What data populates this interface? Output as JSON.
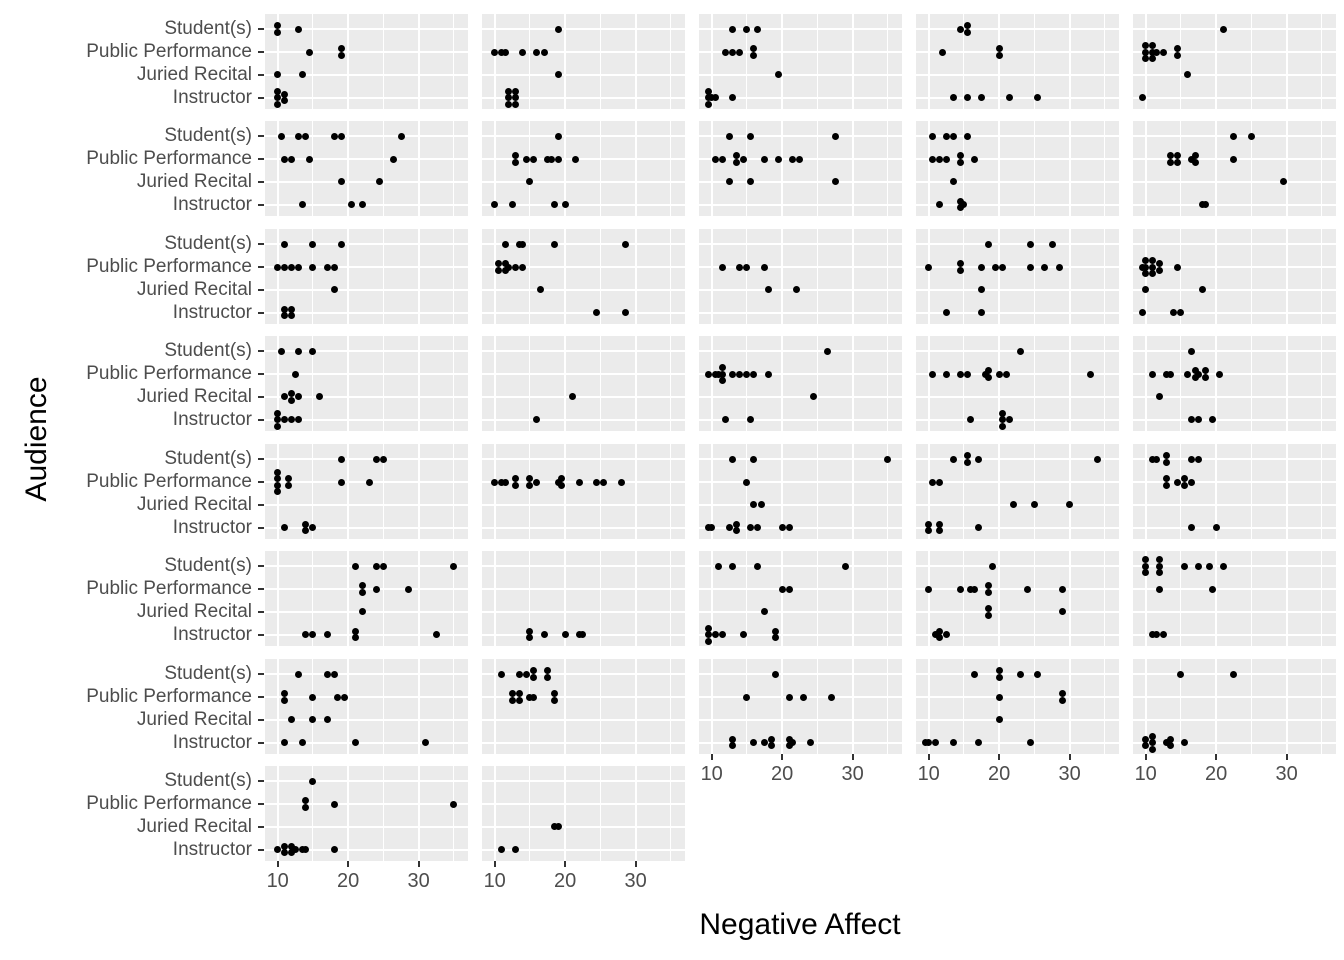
{
  "axes": {
    "x_title": "Negative Affect",
    "y_title": "Audience",
    "x_tick_labels": [
      "10",
      "20",
      "30"
    ],
    "y_category_labels": [
      "Student(s)",
      "Public Performance",
      "Juried Recital",
      "Instructor"
    ]
  },
  "colors": {
    "panel_background": "#ebebeb",
    "gridline": "#ffffff",
    "point": "#000000",
    "tick_label": "#4d4d4d",
    "axis_title": "#000000",
    "tick_mark": "#333333"
  },
  "chart_data": {
    "type": "scatter",
    "subtype": "faceted-dot-plot",
    "title": "",
    "xlabel": "Negative Affect",
    "ylabel": "Audience",
    "x_domain": [
      8.2,
      37
    ],
    "x_major_gridlines": [
      10,
      20,
      30
    ],
    "x_minor_gridlines": [
      15,
      25,
      35
    ],
    "y_categories_top_to_bottom": [
      "Student(s)",
      "Public Performance",
      "Juried Recital",
      "Instructor"
    ],
    "grid": "on",
    "legend": "none",
    "facet_grid_rows": 8,
    "facet_grid_cols": 5,
    "facets": [
      {
        "row": 1,
        "col": 1,
        "points": {
          "Student(s)": [
            10,
            10,
            13
          ],
          "Public Performance": [
            14.5,
            19,
            19
          ],
          "Juried Recital": [
            10,
            13.5
          ],
          "Instructor": [
            10,
            10,
            10,
            11,
            11
          ]
        }
      },
      {
        "row": 1,
        "col": 2,
        "points": {
          "Student(s)": [
            19
          ],
          "Public Performance": [
            10,
            11,
            11.5,
            14,
            16,
            17
          ],
          "Juried Recital": [
            19
          ],
          "Instructor": [
            12,
            12,
            12,
            13,
            13,
            13
          ]
        }
      },
      {
        "row": 1,
        "col": 3,
        "points": {
          "Student(s)": [
            13,
            15,
            16.5
          ],
          "Public Performance": [
            12,
            13,
            14,
            16,
            16
          ],
          "Juried Recital": [
            19.5
          ],
          "Instructor": [
            9.5,
            9.5,
            9.5,
            10,
            10.5,
            13
          ]
        }
      },
      {
        "row": 1,
        "col": 4,
        "points": {
          "Student(s)": [
            14.5,
            15.5,
            15.5
          ],
          "Public Performance": [
            12,
            20,
            20
          ],
          "Juried Recital": [],
          "Instructor": [
            13.5,
            15.5,
            17.5,
            21.5,
            25.5
          ]
        }
      },
      {
        "row": 1,
        "col": 5,
        "points": {
          "Student(s)": [
            21
          ],
          "Public Performance": [
            10,
            10,
            10,
            11,
            11,
            11,
            11.5,
            12.5,
            14.5,
            14.5
          ],
          "Juried Recital": [
            16
          ],
          "Instructor": [
            9.5
          ]
        }
      },
      {
        "row": 2,
        "col": 1,
        "points": {
          "Student(s)": [
            10.5,
            13,
            14,
            18,
            19,
            27.5
          ],
          "Public Performance": [
            11,
            12,
            14.5,
            26.5
          ],
          "Juried Recital": [
            19,
            24.5
          ],
          "Instructor": [
            13.5,
            20.5,
            22
          ]
        }
      },
      {
        "row": 2,
        "col": 2,
        "points": {
          "Student(s)": [
            19
          ],
          "Public Performance": [
            13,
            13,
            14.5,
            15.5,
            17.5,
            18,
            19,
            21.5
          ],
          "Juried Recital": [
            15
          ],
          "Instructor": [
            10,
            12.5,
            18.5,
            20
          ]
        }
      },
      {
        "row": 2,
        "col": 3,
        "points": {
          "Student(s)": [
            12.5,
            15.5,
            27.5
          ],
          "Public Performance": [
            10.5,
            11.5,
            13.5,
            13.5,
            14.5,
            17.5,
            19.5,
            21.5,
            22.5
          ],
          "Juried Recital": [
            12.5,
            15.5,
            27.5
          ],
          "Instructor": []
        }
      },
      {
        "row": 2,
        "col": 4,
        "points": {
          "Student(s)": [
            10.5,
            12.5,
            13.5,
            15.5
          ],
          "Public Performance": [
            10.5,
            11.5,
            12.5,
            14.5,
            14.5,
            16.5
          ],
          "Juried Recital": [
            13.5
          ],
          "Instructor": [
            11.5,
            14.5,
            14.5,
            15
          ]
        }
      },
      {
        "row": 2,
        "col": 5,
        "points": {
          "Student(s)": [
            22.5,
            25
          ],
          "Public Performance": [
            13.5,
            13.5,
            14.5,
            14.5,
            16.5,
            17,
            17,
            22.5
          ],
          "Juried Recital": [
            29.5
          ],
          "Instructor": [
            18,
            18.5
          ]
        }
      },
      {
        "row": 3,
        "col": 1,
        "points": {
          "Student(s)": [
            11,
            15,
            19
          ],
          "Public Performance": [
            10,
            11,
            12,
            13,
            15,
            17,
            18
          ],
          "Juried Recital": [
            18
          ],
          "Instructor": [
            11,
            11,
            12,
            12
          ]
        }
      },
      {
        "row": 3,
        "col": 2,
        "points": {
          "Student(s)": [
            11.5,
            13.5,
            14,
            18.5,
            28.5
          ],
          "Public Performance": [
            10.5,
            10.5,
            11.5,
            11.5,
            12,
            13,
            14
          ],
          "Juried Recital": [
            16.5
          ],
          "Instructor": [
            24.5,
            28.5
          ]
        }
      },
      {
        "row": 3,
        "col": 3,
        "points": {
          "Student(s)": [],
          "Public Performance": [
            11.5,
            14,
            15,
            17.5
          ],
          "Juried Recital": [
            18,
            22
          ],
          "Instructor": []
        }
      },
      {
        "row": 3,
        "col": 4,
        "points": {
          "Student(s)": [
            18.5,
            24.5,
            27.5
          ],
          "Public Performance": [
            10,
            14.5,
            14.5,
            17.5,
            19.5,
            20.5,
            24.5,
            26.5,
            28.5
          ],
          "Juried Recital": [
            17.5
          ],
          "Instructor": [
            12.5,
            17.5
          ]
        }
      },
      {
        "row": 3,
        "col": 5,
        "points": {
          "Student(s)": [],
          "Public Performance": [
            9.5,
            10,
            10,
            10,
            11,
            11,
            11,
            12,
            12,
            14.5
          ],
          "Juried Recital": [
            10,
            18
          ],
          "Instructor": [
            9.5,
            14,
            15
          ]
        }
      },
      {
        "row": 4,
        "col": 1,
        "points": {
          "Student(s)": [
            10.5,
            13,
            15
          ],
          "Public Performance": [
            12.5
          ],
          "Juried Recital": [
            11,
            12,
            12,
            13,
            16
          ],
          "Instructor": [
            10,
            10,
            10,
            11,
            12,
            13
          ]
        }
      },
      {
        "row": 4,
        "col": 2,
        "points": {
          "Student(s)": [],
          "Public Performance": [],
          "Juried Recital": [
            21
          ],
          "Instructor": [
            16
          ]
        }
      },
      {
        "row": 4,
        "col": 3,
        "points": {
          "Student(s)": [
            26.5
          ],
          "Public Performance": [
            9.5,
            10.5,
            11,
            11.5,
            11.5,
            11.5,
            13,
            14,
            15,
            16,
            18
          ],
          "Juried Recital": [
            24.5
          ],
          "Instructor": [
            12,
            15.5
          ]
        }
      },
      {
        "row": 4,
        "col": 4,
        "points": {
          "Student(s)": [
            23
          ],
          "Public Performance": [
            10.5,
            12.5,
            14.5,
            15.5,
            18,
            18.5,
            18.5,
            20,
            21,
            33
          ],
          "Juried Recital": [],
          "Instructor": [
            16,
            20.5,
            20.5,
            20.5,
            21.5
          ]
        }
      },
      {
        "row": 4,
        "col": 5,
        "points": {
          "Student(s)": [
            16.5
          ],
          "Public Performance": [
            11,
            13,
            13.5,
            16,
            17,
            17,
            17.5,
            18.5,
            18.5,
            20.5
          ],
          "Juried Recital": [
            12
          ],
          "Instructor": [
            16.5,
            17.5,
            19.5
          ]
        }
      },
      {
        "row": 5,
        "col": 1,
        "points": {
          "Student(s)": [
            19,
            24,
            25
          ],
          "Public Performance": [
            10,
            10,
            10,
            10,
            11.5,
            11.5,
            19,
            23
          ],
          "Juried Recital": [],
          "Instructor": [
            11,
            14,
            14,
            15
          ]
        }
      },
      {
        "row": 5,
        "col": 2,
        "points": {
          "Student(s)": [],
          "Public Performance": [
            10,
            11,
            11.5,
            13,
            13,
            15,
            15,
            16,
            19,
            19.5,
            19.5,
            22,
            24.5,
            25.5,
            28
          ],
          "Juried Recital": [],
          "Instructor": []
        }
      },
      {
        "row": 5,
        "col": 3,
        "points": {
          "Student(s)": [
            13,
            16,
            35
          ],
          "Public Performance": [
            15
          ],
          "Juried Recital": [
            16,
            17
          ],
          "Instructor": [
            9.5,
            10,
            12.5,
            13.5,
            13.5,
            15.5,
            16.5,
            20,
            21
          ]
        }
      },
      {
        "row": 5,
        "col": 4,
        "points": {
          "Student(s)": [
            13.5,
            15.5,
            15.5,
            17,
            34
          ],
          "Public Performance": [
            10.5,
            11.5
          ],
          "Juried Recital": [
            22,
            25,
            30
          ],
          "Instructor": [
            10,
            10,
            11.5,
            11.5,
            17
          ]
        }
      },
      {
        "row": 5,
        "col": 5,
        "points": {
          "Student(s)": [
            11,
            11.5,
            13,
            13,
            16.5,
            17.5
          ],
          "Public Performance": [
            13,
            13,
            14.5,
            15.5,
            15.5,
            16.5
          ],
          "Juried Recital": [],
          "Instructor": [
            16.5,
            20
          ]
        }
      },
      {
        "row": 6,
        "col": 1,
        "points": {
          "Student(s)": [
            21,
            24,
            25,
            35
          ],
          "Public Performance": [
            22,
            22,
            24,
            28.5
          ],
          "Juried Recital": [
            22
          ],
          "Instructor": [
            14,
            15,
            17,
            21,
            21,
            32.5
          ]
        }
      },
      {
        "row": 6,
        "col": 2,
        "points": {
          "Student(s)": [],
          "Public Performance": [],
          "Juried Recital": [],
          "Instructor": [
            15,
            15,
            17,
            20,
            22,
            22.5
          ]
        }
      },
      {
        "row": 6,
        "col": 3,
        "points": {
          "Student(s)": [
            11,
            13,
            16.5,
            29
          ],
          "Public Performance": [
            20,
            21
          ],
          "Juried Recital": [
            17.5
          ],
          "Instructor": [
            9.5,
            9.5,
            9.5,
            10.5,
            11.5,
            14.5,
            19,
            19
          ]
        }
      },
      {
        "row": 6,
        "col": 4,
        "points": {
          "Student(s)": [
            19
          ],
          "Public Performance": [
            10,
            14.5,
            16,
            16.5,
            18.5,
            18.5,
            24,
            29
          ],
          "Juried Recital": [
            18.5,
            18.5,
            29
          ],
          "Instructor": [
            11,
            11.5,
            11.5,
            12.5
          ]
        }
      },
      {
        "row": 6,
        "col": 5,
        "points": {
          "Student(s)": [
            10,
            10,
            10,
            12,
            12,
            12,
            15.5,
            17.5,
            19,
            21
          ],
          "Public Performance": [
            12,
            19.5
          ],
          "Juried Recital": [],
          "Instructor": [
            11,
            11.5,
            12.5
          ]
        }
      },
      {
        "row": 7,
        "col": 1,
        "points": {
          "Student(s)": [
            13,
            17,
            18
          ],
          "Public Performance": [
            11,
            11,
            15,
            18.5,
            19.5
          ],
          "Juried Recital": [
            12,
            15,
            17
          ],
          "Instructor": [
            11,
            13.5,
            21,
            31
          ]
        }
      },
      {
        "row": 7,
        "col": 2,
        "points": {
          "Student(s)": [
            11,
            13.5,
            14.5,
            15.5,
            15.5,
            17.5,
            17.5
          ],
          "Public Performance": [
            12.5,
            12.5,
            13.5,
            13.5,
            15,
            15.5,
            18.5,
            18.5
          ],
          "Juried Recital": [],
          "Instructor": []
        }
      },
      {
        "row": 7,
        "col": 3,
        "points": {
          "Student(s)": [
            19
          ],
          "Public Performance": [
            15,
            21,
            23,
            27
          ],
          "Juried Recital": [],
          "Instructor": [
            13,
            13,
            16,
            17.5,
            18.5,
            18.5,
            21,
            21,
            21.5,
            24
          ]
        }
      },
      {
        "row": 7,
        "col": 4,
        "points": {
          "Student(s)": [
            16.5,
            20,
            20,
            23,
            25.5
          ],
          "Public Performance": [
            20,
            29,
            29
          ],
          "Juried Recital": [
            20
          ],
          "Instructor": [
            9.5,
            10,
            11,
            13.5,
            17,
            24.5
          ]
        }
      },
      {
        "row": 7,
        "col": 5,
        "points": {
          "Student(s)": [
            15,
            22.5
          ],
          "Public Performance": [],
          "Juried Recital": [],
          "Instructor": [
            10,
            10,
            11,
            11,
            11,
            13,
            13.5,
            13.5,
            15.5
          ]
        }
      },
      {
        "row": 8,
        "col": 1,
        "points": {
          "Student(s)": [
            15
          ],
          "Public Performance": [
            14,
            14,
            18,
            35
          ],
          "Juried Recital": [],
          "Instructor": [
            10,
            11,
            11,
            12,
            12,
            12.5,
            13.5,
            14,
            18
          ]
        }
      },
      {
        "row": 8,
        "col": 2,
        "points": {
          "Student(s)": [],
          "Public Performance": [],
          "Juried Recital": [
            18.5,
            19
          ],
          "Instructor": [
            11,
            13
          ]
        }
      }
    ]
  }
}
